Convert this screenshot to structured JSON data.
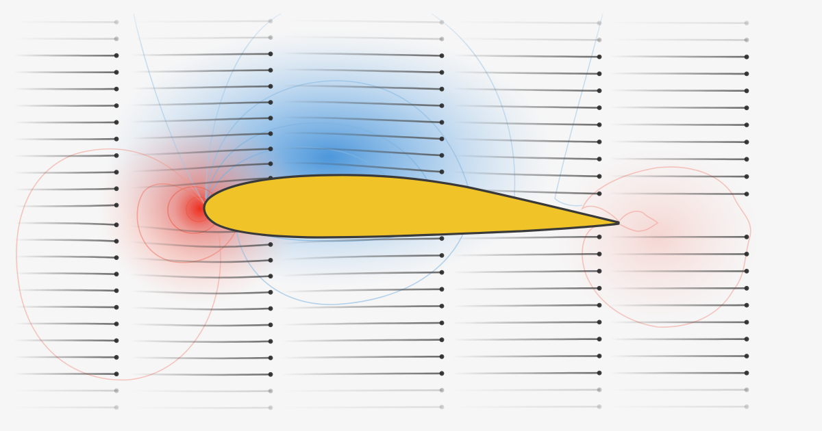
{
  "figure": {
    "subject": "airfoil-flow-visualization",
    "colors": {
      "background": "#f6f6f6",
      "airfoil_fill": "#f0c428",
      "airfoil_stroke": "#3a3a3a",
      "streak": "#4a4a4a",
      "dot": "#2a2a2a",
      "low_pressure": "#2f86d6",
      "high_pressure": "#ef3b2c"
    },
    "icons": [
      "airfoil-shape",
      "streamline-streak",
      "particle-dot",
      "pressure-isoline"
    ]
  }
}
